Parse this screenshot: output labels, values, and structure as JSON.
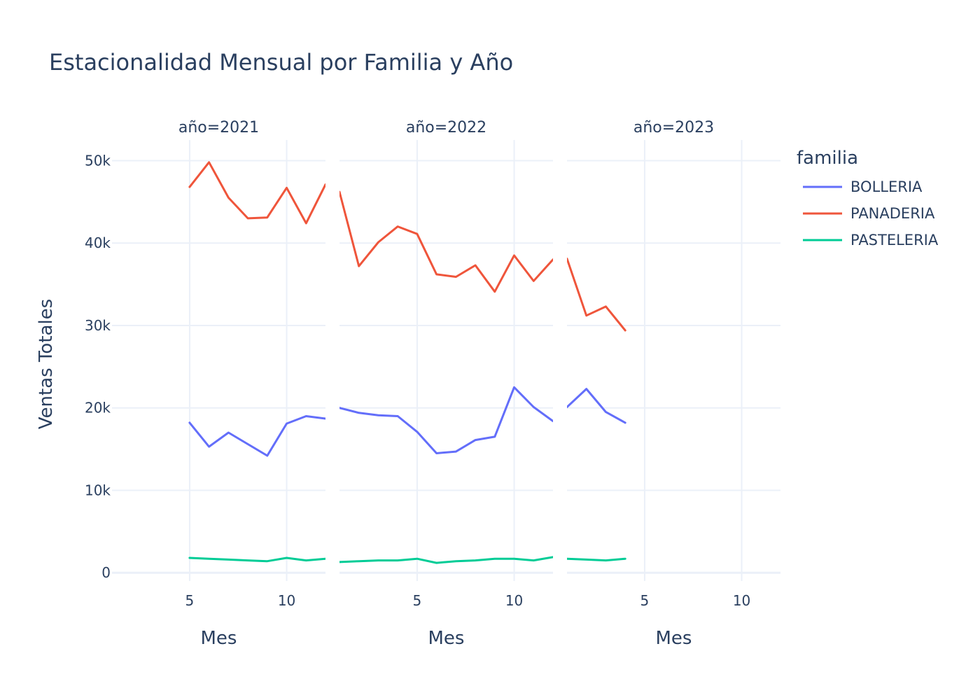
{
  "chart_data": {
    "type": "line",
    "title": "Estacionalidad Mensual por Familia y Año",
    "ylabel": "Ventas Totales",
    "xlabel": "Mes",
    "ylim": [
      -1000,
      52500
    ],
    "yticks": [
      0,
      10000,
      20000,
      30000,
      40000,
      50000
    ],
    "ytick_labels": [
      "0",
      "10k",
      "20k",
      "30k",
      "40k",
      "50k"
    ],
    "xlim": [
      1,
      12
    ],
    "xticks": [
      5,
      10
    ],
    "xtick_labels": [
      "5",
      "10"
    ],
    "grid": true,
    "legend": {
      "title": "familia",
      "placement": "right"
    },
    "series_colors": {
      "BOLLERIA": "#636efa",
      "PANADERIA": "#ef553b",
      "PASTELERIA": "#00cc96"
    },
    "facets": [
      {
        "label": "año=2021",
        "series": [
          {
            "name": "BOLLERIA",
            "x": [
              5,
              6,
              7,
              8,
              9,
              10,
              11,
              12
            ],
            "values": [
              18200,
              15300,
              17000,
              15600,
              14200,
              18100,
              19000,
              18700
            ]
          },
          {
            "name": "PANADERIA",
            "x": [
              5,
              6,
              7,
              8,
              9,
              10,
              11,
              12
            ],
            "values": [
              46800,
              49800,
              45500,
              43000,
              43100,
              46700,
              42400,
              47100
            ]
          },
          {
            "name": "PASTELERIA",
            "x": [
              5,
              6,
              7,
              8,
              9,
              10,
              11,
              12
            ],
            "values": [
              1800,
              1700,
              1600,
              1500,
              1400,
              1800,
              1500,
              1700
            ]
          }
        ]
      },
      {
        "label": "año=2022",
        "series": [
          {
            "name": "BOLLERIA",
            "x": [
              1,
              2,
              3,
              4,
              5,
              6,
              7,
              8,
              9,
              10,
              11,
              12
            ],
            "values": [
              20000,
              19400,
              19100,
              19000,
              17100,
              14500,
              14700,
              16100,
              16500,
              22500,
              20100,
              18400
            ]
          },
          {
            "name": "PANADERIA",
            "x": [
              1,
              2,
              3,
              4,
              5,
              6,
              7,
              8,
              9,
              10,
              11,
              12
            ],
            "values": [
              46200,
              37200,
              40100,
              42000,
              41100,
              36200,
              35900,
              37300,
              34100,
              38500,
              35400,
              38000
            ]
          },
          {
            "name": "PASTELERIA",
            "x": [
              1,
              2,
              3,
              4,
              5,
              6,
              7,
              8,
              9,
              10,
              11,
              12
            ],
            "values": [
              1300,
              1400,
              1500,
              1500,
              1700,
              1200,
              1400,
              1500,
              1700,
              1700,
              1500,
              1900
            ]
          }
        ]
      },
      {
        "label": "año=2023",
        "series": [
          {
            "name": "BOLLERIA",
            "x": [
              1,
              2,
              3,
              4
            ],
            "values": [
              20100,
              22300,
              19500,
              18200
            ]
          },
          {
            "name": "PANADERIA",
            "x": [
              1,
              2,
              3,
              4
            ],
            "values": [
              38100,
              31200,
              32300,
              29400
            ]
          },
          {
            "name": "PASTELERIA",
            "x": [
              1,
              2,
              3,
              4
            ],
            "values": [
              1700,
              1600,
              1500,
              1700
            ]
          }
        ]
      }
    ]
  }
}
